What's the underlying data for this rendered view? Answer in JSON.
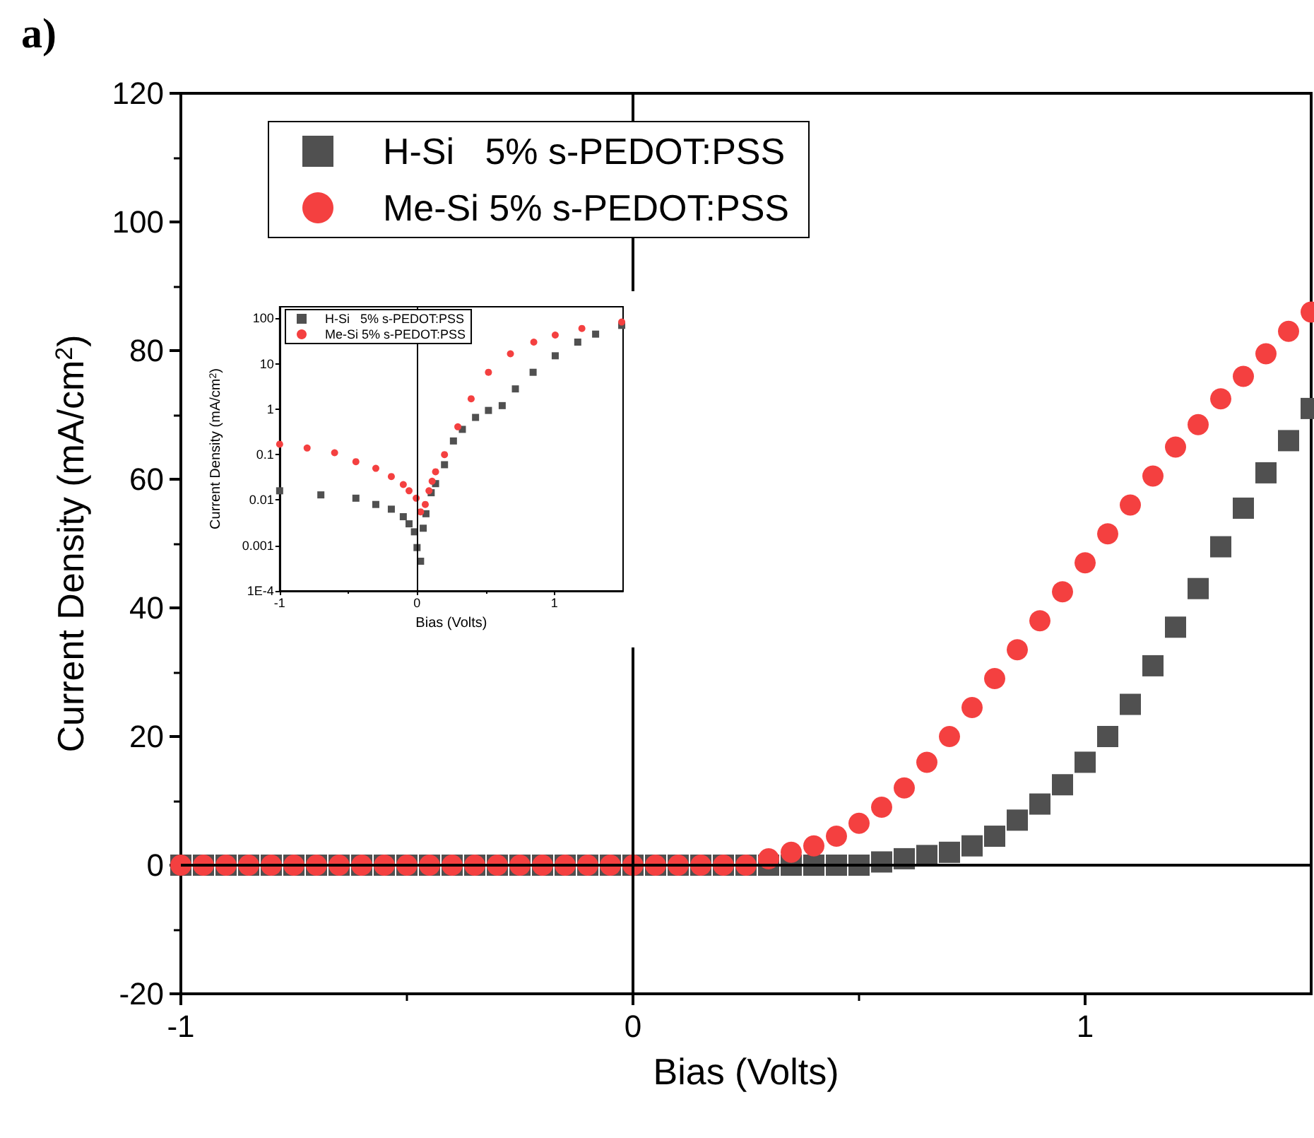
{
  "chart_data": [
    {
      "type": "scatter",
      "title": "a)",
      "xlabel": "Bias (Volts)",
      "ylabel": "Current Density (mA/cm$^{2}$)",
      "x": [
        -1,
        -0.95,
        -0.9,
        -0.85,
        -0.8,
        -0.75,
        -0.7,
        -0.65,
        -0.6,
        -0.55,
        -0.5,
        -0.45,
        -0.4,
        -0.35,
        -0.3,
        -0.25,
        -0.2,
        -0.15,
        -0.1,
        -0.05,
        0,
        0.05,
        0.1,
        0.15,
        0.2,
        0.25,
        0.3,
        0.35,
        0.4,
        0.45,
        0.5,
        0.55,
        0.6,
        0.65,
        0.7,
        0.75,
        0.8,
        0.85,
        0.9,
        0.95,
        1,
        1.05,
        1.1,
        1.15,
        1.2,
        1.25,
        1.3,
        1.35,
        1.4,
        1.45,
        1.5
      ],
      "series": [
        {
          "name": "H-Si   5% s-PEDOT:PSS",
          "color": "#505050",
          "marker": "square",
          "values": [
            0,
            0,
            0,
            0,
            0,
            0,
            0,
            0,
            0,
            0,
            0,
            0,
            0,
            0,
            0,
            0,
            0,
            0,
            0,
            0,
            0,
            0,
            0,
            0,
            0,
            0,
            0,
            0,
            0,
            0,
            0,
            0.5,
            1,
            1.5,
            2,
            3,
            4.5,
            7,
            9.5,
            12.5,
            16,
            20,
            25,
            31,
            37,
            43,
            49.5,
            55.5,
            61,
            66,
            71
          ]
        },
        {
          "name": "Me-Si 5% s-PEDOT:PSS",
          "color": "#f44040",
          "marker": "circle",
          "values": [
            0,
            0,
            0,
            0,
            0,
            0,
            0,
            0,
            0,
            0,
            0,
            0,
            0,
            0,
            0,
            0,
            0,
            0,
            0,
            0,
            0,
            0,
            0,
            0,
            0,
            0,
            1,
            2,
            3,
            4.5,
            6.5,
            9,
            12,
            16,
            20,
            24.5,
            29,
            33.5,
            38,
            42.5,
            47,
            51.5,
            56,
            60.5,
            65,
            68.5,
            72.5,
            76,
            79.5,
            83,
            86
          ]
        }
      ],
      "xlim": [
        -1,
        1.5
      ],
      "xticks": [
        -1,
        0,
        1
      ],
      "ylim": [
        -20,
        120
      ],
      "yticks": [
        -20,
        0,
        20,
        40,
        60,
        80,
        100,
        120
      ],
      "ref_lines": [
        {
          "axis": "x",
          "value": 0,
          "color": "#000000"
        },
        {
          "axis": "y",
          "value": 0,
          "color": "#000000"
        }
      ],
      "grid": false,
      "legend": "top left"
    },
    {
      "type": "scatter",
      "xlabel": "Bias (Volts)",
      "ylabel": "Current Density (mA/cm$^{2}$)",
      "log": true,
      "series": [
        {
          "name": "H-Si   5% s-PEDOT:PSS",
          "color": "#505050",
          "marker": "square",
          "x": [
            -1,
            -0.7,
            -0.445,
            -0.3,
            -0.187,
            -0.1,
            -0.058,
            -0.019,
            0,
            0.026,
            0.045,
            0.065,
            0.103,
            0.135,
            0.2,
            0.265,
            0.33,
            0.426,
            0.52,
            0.62,
            0.716,
            0.845,
            1.006,
            1.17,
            1.3,
            1.49
          ],
          "values": [
            0.016,
            0.013,
            0.011,
            0.008,
            0.0063,
            0.0043,
            0.003,
            0.002,
            0.0009,
            0.00045,
            0.0024,
            0.005,
            0.0145,
            0.023,
            0.06,
            0.2,
            0.36,
            0.66,
            0.94,
            1.2,
            2.8,
            6.5,
            15,
            30,
            45,
            70
          ]
        },
        {
          "name": "Me-Si 5% s-PEDOT:PSS",
          "color": "#f44040",
          "marker": "circle",
          "x": [
            -1,
            -0.8,
            -0.6,
            -0.445,
            -0.3,
            -0.187,
            -0.1,
            -0.058,
            -0.006,
            0.026,
            0.06,
            0.087,
            0.11,
            0.135,
            0.2,
            0.297,
            0.394,
            0.52,
            0.68,
            0.85,
            1.006,
            1.2,
            1.49
          ],
          "values": [
            0.17,
            0.14,
            0.11,
            0.07,
            0.05,
            0.033,
            0.022,
            0.016,
            0.011,
            0.0055,
            0.008,
            0.016,
            0.026,
            0.042,
            0.1,
            0.41,
            1.7,
            6.5,
            16.6,
            30,
            43,
            60,
            83
          ]
        }
      ],
      "xlim": [
        -1,
        1.5
      ],
      "xticks": [
        -1,
        0,
        1
      ],
      "ylim": [
        0.0001,
        180
      ],
      "yticks": [
        {
          "value": 0.0001,
          "label": "1E-4"
        },
        0.001,
        0.01,
        0.1,
        1,
        10,
        100
      ],
      "ref_lines": [
        {
          "axis": "x",
          "value": 0,
          "color": "#000000"
        }
      ],
      "grid": false,
      "legend": "top left"
    }
  ]
}
